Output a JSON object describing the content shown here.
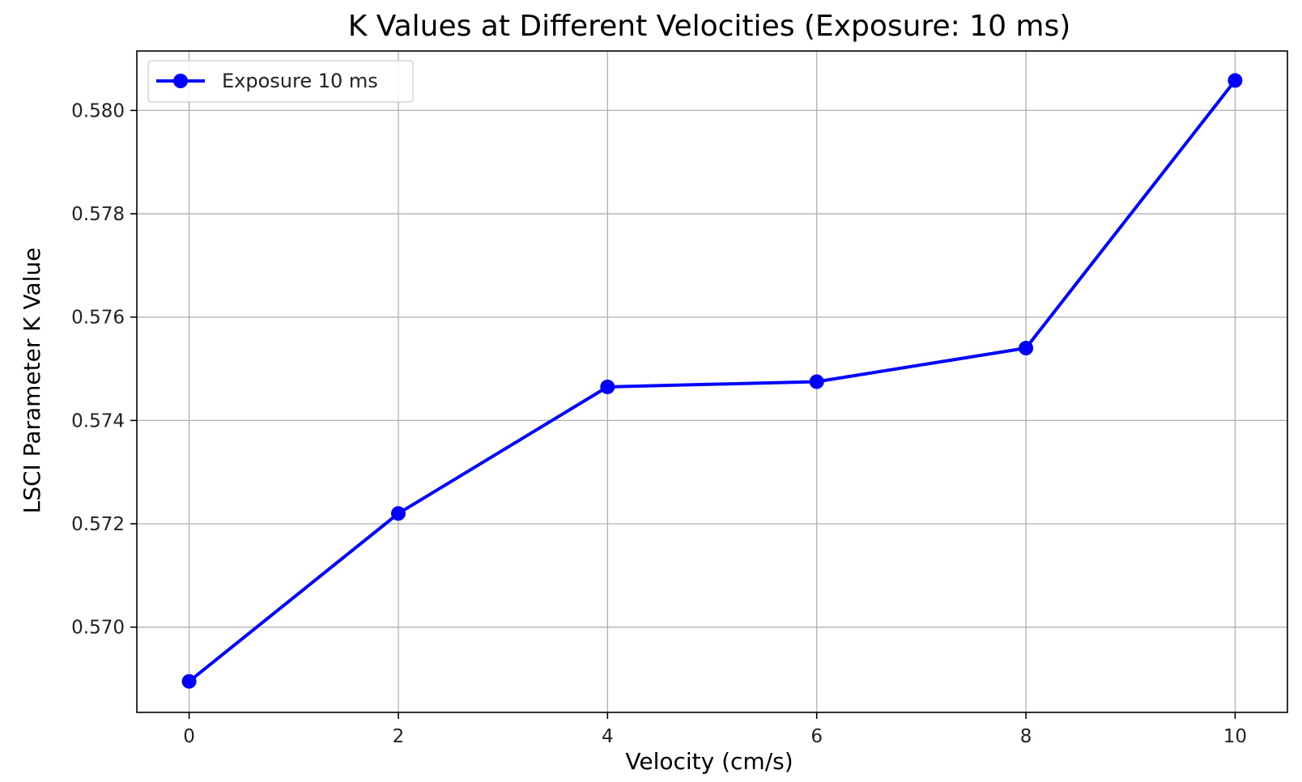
{
  "chart_data": {
    "type": "line",
    "title": "K Values at Different Velocities (Exposure: 10 ms)",
    "xlabel": "Velocity (cm/s)",
    "ylabel": "LSCI Parameter K Value",
    "xlim": [
      -0.5,
      10.5
    ],
    "ylim": [
      0.56835,
      0.58115
    ],
    "x_ticks": [
      0,
      2,
      4,
      6,
      8,
      10
    ],
    "x_tick_labels": [
      "0",
      "2",
      "4",
      "6",
      "8",
      "10"
    ],
    "y_ticks": [
      0.57,
      0.572,
      0.574,
      0.576,
      0.578,
      0.58
    ],
    "y_tick_labels": [
      "0.570",
      "0.572",
      "0.574",
      "0.576",
      "0.578",
      "0.580"
    ],
    "grid": true,
    "legend_position": "top-left",
    "series": [
      {
        "name": "Exposure 10 ms",
        "color": "#0000ff",
        "marker": "circle",
        "x": [
          0,
          2,
          4,
          6,
          8,
          10
        ],
        "y": [
          0.56895,
          0.5722,
          0.57465,
          0.57475,
          0.5754,
          0.58058
        ]
      }
    ]
  }
}
